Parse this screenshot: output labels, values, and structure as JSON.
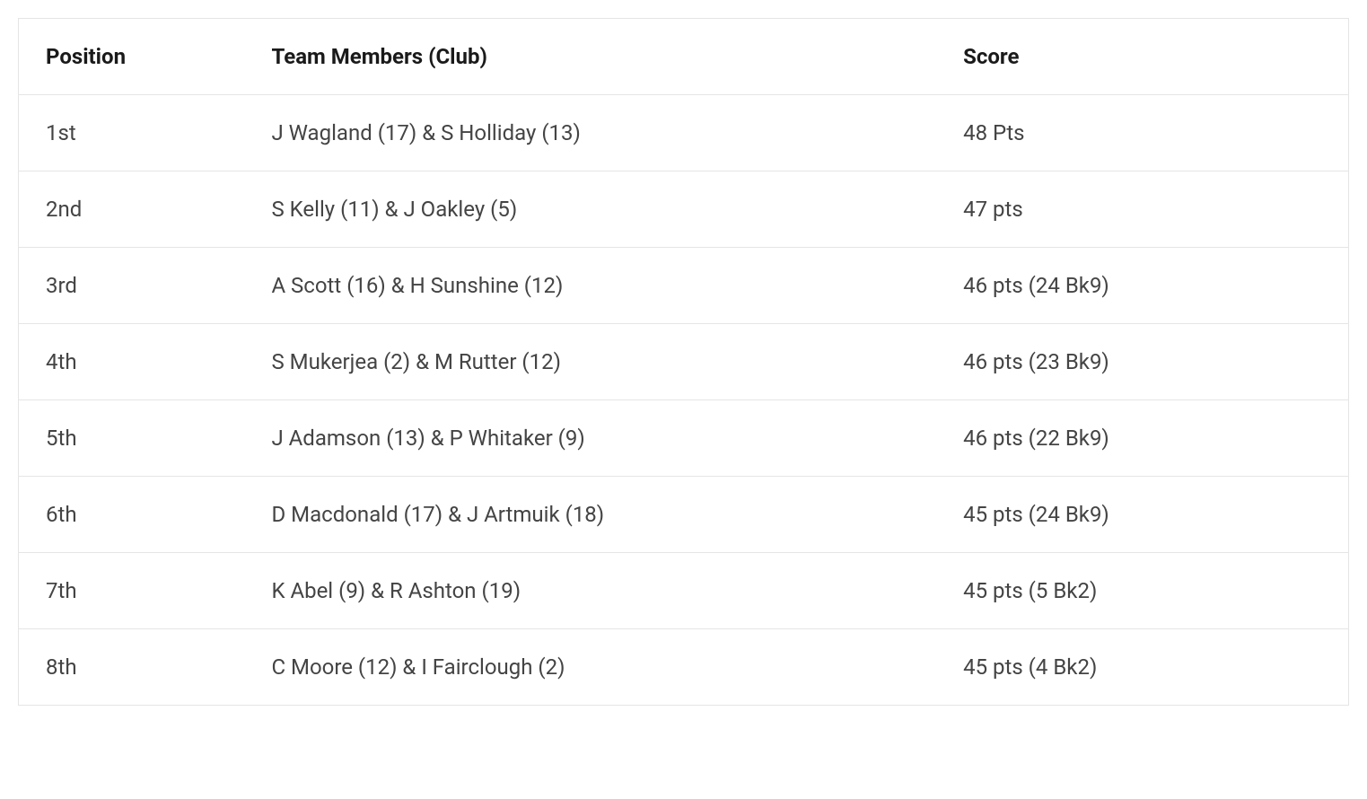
{
  "table": {
    "columns": [
      "Position",
      "Team Members (Club)",
      "Score"
    ],
    "rows": [
      [
        "1st",
        "J Wagland (17) & S Holliday (13)",
        "48 Pts"
      ],
      [
        "2nd",
        "S Kelly (11) & J Oakley (5)",
        "47 pts"
      ],
      [
        "3rd",
        "A Scott (16) & H Sunshine (12)",
        "46 pts (24 Bk9)"
      ],
      [
        "4th",
        "S Mukerjea (2) & M Rutter (12)",
        "46 pts (23 Bk9)"
      ],
      [
        "5th",
        "J Adamson (13) & P Whitaker (9)",
        "46 pts (22 Bk9)"
      ],
      [
        "6th",
        "D Macdonald (17) & J Artmuik (18)",
        "45 pts (24 Bk9)"
      ],
      [
        "7th",
        "K Abel (9) & R Ashton (19)",
        "45 pts (5 Bk2)"
      ],
      [
        "8th",
        "C Moore (12) & I Fairclough (2)",
        "45 pts (4 Bk2)"
      ]
    ],
    "header_color": "#1a1a1a",
    "cell_color": "#444444",
    "border_color": "#e5e5e5",
    "background_color": "#ffffff",
    "header_fontsize": 24,
    "cell_fontsize": 24,
    "header_fontweight": 700,
    "cell_fontweight": 400
  }
}
